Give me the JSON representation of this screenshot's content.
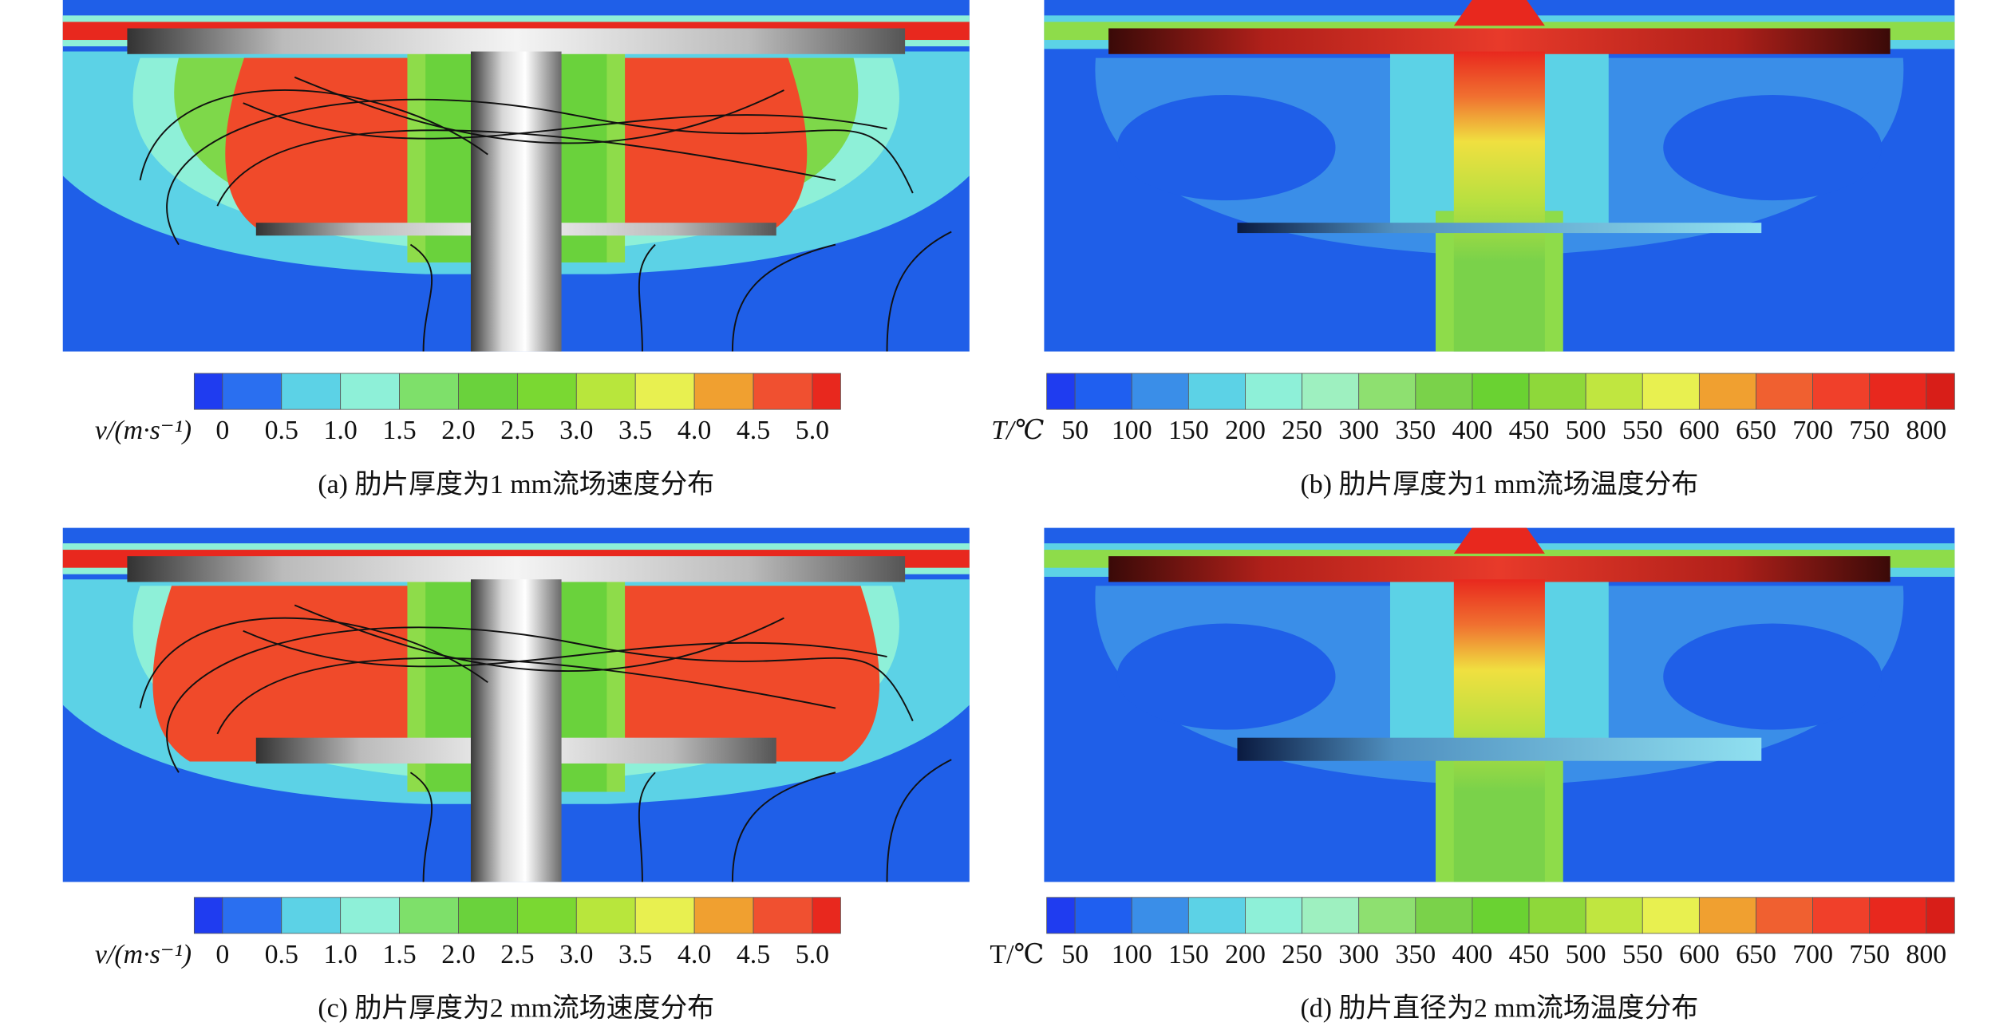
{
  "panels": [
    {
      "caption": "(a) 肋片厚度为1 mm流场速度分布",
      "colorbar": {
        "label": "v/(m·s⁻¹)",
        "ticks": [
          "0",
          "0.5",
          "1.0",
          "1.5",
          "2.0",
          "2.5",
          "3.0",
          "3.5",
          "4.0",
          "4.5",
          "5.0"
        ]
      }
    },
    {
      "caption": "(b) 肋片厚度为1 mm流场温度分布",
      "colorbar": {
        "label": "T/℃",
        "ticks": [
          "50",
          "100",
          "150",
          "200",
          "250",
          "300",
          "350",
          "400",
          "450",
          "500",
          "550",
          "600",
          "650",
          "700",
          "750",
          "800"
        ]
      }
    },
    {
      "caption": "(c) 肋片厚度为2 mm流场速度分布",
      "colorbar": {
        "label": "v/(m·s⁻¹)",
        "ticks": [
          "0",
          "0.5",
          "1.0",
          "1.5",
          "2.0",
          "2.5",
          "3.0",
          "3.5",
          "4.0",
          "4.5",
          "5.0"
        ]
      }
    },
    {
      "caption": "(d) 肋片直径为2 mm流场温度分布",
      "colorbar": {
        "label": "T/℃",
        "ticks": [
          "50",
          "100",
          "150",
          "200",
          "250",
          "300",
          "350",
          "400",
          "450",
          "500",
          "550",
          "600",
          "650",
          "700",
          "750",
          "800"
        ]
      }
    }
  ]
}
